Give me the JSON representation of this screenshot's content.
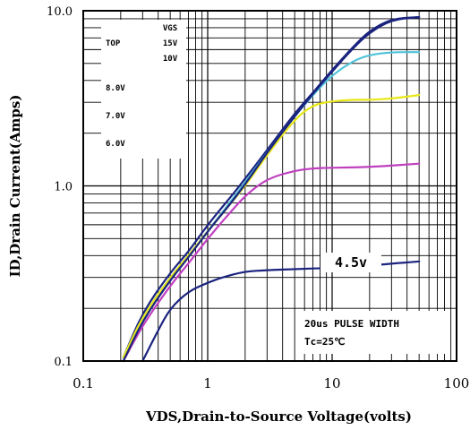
{
  "chart_data": {
    "type": "line",
    "x_scale": "log",
    "y_scale": "log",
    "xlim": [
      0.1,
      100
    ],
    "ylim": [
      0.1,
      10
    ],
    "grid": true,
    "xlabel": "VDS,Drain-to-Source Voltage(volts)",
    "ylabel": "ID,Drain Current(Amps)",
    "x_ticks": [
      0.1,
      1,
      10,
      100
    ],
    "x_tick_labels": [
      "0.1",
      "1",
      "10",
      "100"
    ],
    "y_ticks": [
      0.1,
      1,
      10
    ],
    "y_tick_labels": [
      "0.1",
      "1.0",
      "10.0"
    ],
    "legend": {
      "header": "VGS",
      "top_label": "TOP",
      "entries": [
        "15V",
        "10V",
        "8.0V",
        "7.0V",
        "6.0V"
      ]
    },
    "annotations": {
      "series_label": "4.5v",
      "pulse": "20us PULSE WIDTH",
      "temp": "Tc=25℃"
    },
    "colors": {
      "grid": "#000000",
      "vgs_15": "#1a237e",
      "vgs_10": "#4fc3d9",
      "vgs_8": "#e8e81a",
      "vgs_7": "#c040c0",
      "vgs_6": "#1a237e",
      "vgs_45": "#1a237e"
    },
    "series": [
      {
        "name": "15V",
        "color_key": "vgs_15",
        "x": [
          0.21,
          0.3,
          0.5,
          0.7,
          1,
          1.5,
          2,
          3,
          5,
          7,
          10,
          15,
          20,
          30,
          50
        ],
        "y": [
          0.105,
          0.19,
          0.32,
          0.42,
          0.6,
          0.85,
          1.1,
          1.6,
          2.6,
          3.4,
          4.6,
          6.3,
          7.7,
          9.0,
          9.2
        ]
      },
      {
        "name": "10V",
        "color_key": "vgs_10",
        "x": [
          0.21,
          0.3,
          0.5,
          0.7,
          1,
          1.5,
          2,
          3,
          5,
          7,
          10,
          15,
          20,
          30,
          50
        ],
        "y": [
          0.105,
          0.18,
          0.3,
          0.4,
          0.55,
          0.8,
          1.05,
          1.55,
          2.5,
          3.3,
          4.3,
          5.2,
          5.6,
          5.8,
          5.8
        ]
      },
      {
        "name": "8.0V",
        "color_key": "vgs_8",
        "x": [
          0.21,
          0.3,
          0.5,
          0.7,
          1,
          1.5,
          2,
          3,
          5,
          7,
          10,
          15,
          20,
          30,
          50
        ],
        "y": [
          0.105,
          0.18,
          0.3,
          0.4,
          0.55,
          0.78,
          1.0,
          1.5,
          2.4,
          2.9,
          3.05,
          3.1,
          3.1,
          3.15,
          3.3
        ]
      },
      {
        "name": "7.0V",
        "color_key": "vgs_7",
        "x": [
          0.21,
          0.3,
          0.5,
          0.7,
          1,
          1.5,
          2,
          3,
          5,
          7,
          10,
          20,
          50
        ],
        "y": [
          0.1,
          0.16,
          0.27,
          0.36,
          0.5,
          0.7,
          0.88,
          1.1,
          1.22,
          1.26,
          1.27,
          1.28,
          1.34
        ]
      },
      {
        "name": "6.0V",
        "color_key": "vgs_6",
        "x": [
          0.21,
          0.3,
          0.5,
          0.7,
          1,
          1.5,
          2,
          3,
          5,
          7,
          10,
          15,
          20,
          30,
          50
        ],
        "y": [
          0.1,
          0.17,
          0.29,
          0.39,
          0.55,
          0.78,
          1.02,
          1.55,
          2.5,
          3.35,
          4.5,
          6.2,
          7.5,
          8.9,
          9.2
        ]
      },
      {
        "name": "4.5v",
        "color_key": "vgs_45",
        "x": [
          0.3,
          0.4,
          0.5,
          0.7,
          1,
          1.3,
          2,
          3,
          5,
          10,
          15,
          20,
          30,
          50
        ],
        "y": [
          0.1,
          0.15,
          0.2,
          0.25,
          0.28,
          0.3,
          0.325,
          0.33,
          0.335,
          0.34,
          0.345,
          0.35,
          0.36,
          0.37
        ]
      }
    ]
  }
}
